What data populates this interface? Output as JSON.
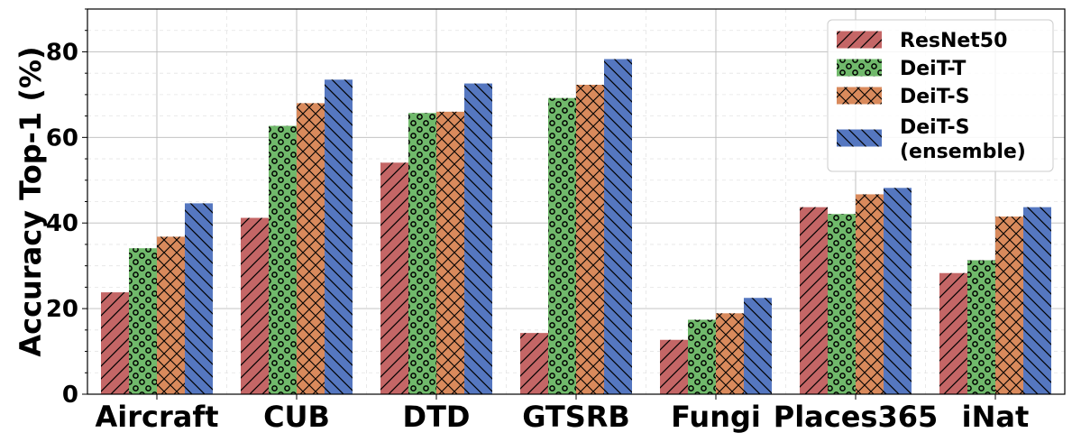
{
  "chart_data": {
    "type": "bar",
    "title": "",
    "xlabel": "",
    "ylabel": "Accuracy Top-1 (%)",
    "ylim": [
      0,
      90
    ],
    "yticks": [
      0,
      20,
      40,
      60,
      80
    ],
    "grid": true,
    "legend_position": "top-right",
    "categories": [
      "Aircraft",
      "CUB",
      "DTD",
      "GTSRB",
      "Fungi",
      "Places365",
      "iNat"
    ],
    "series": [
      {
        "name": "ResNet50",
        "color": "#c46666",
        "hatch": "forward-diagonal",
        "values": [
          23.8,
          41.2,
          54.1,
          14.3,
          12.7,
          43.7,
          28.3
        ]
      },
      {
        "name": "DeiT-T",
        "color": "#70b96b",
        "hatch": "circles",
        "values": [
          34.1,
          62.7,
          65.7,
          69.2,
          17.4,
          42.1,
          31.3
        ]
      },
      {
        "name": "DeiT-S",
        "color": "#d98a5c",
        "hatch": "crosshatch",
        "values": [
          36.8,
          68.0,
          66.0,
          72.3,
          18.9,
          46.7,
          41.5
        ]
      },
      {
        "name": "DeiT-S (ensemble)",
        "legend_lines": [
          "DeiT-S",
          "(ensemble)"
        ],
        "color": "#5577c0",
        "hatch": "back-diagonal",
        "values": [
          44.6,
          73.5,
          72.6,
          78.3,
          22.5,
          48.2,
          43.7
        ]
      }
    ]
  }
}
